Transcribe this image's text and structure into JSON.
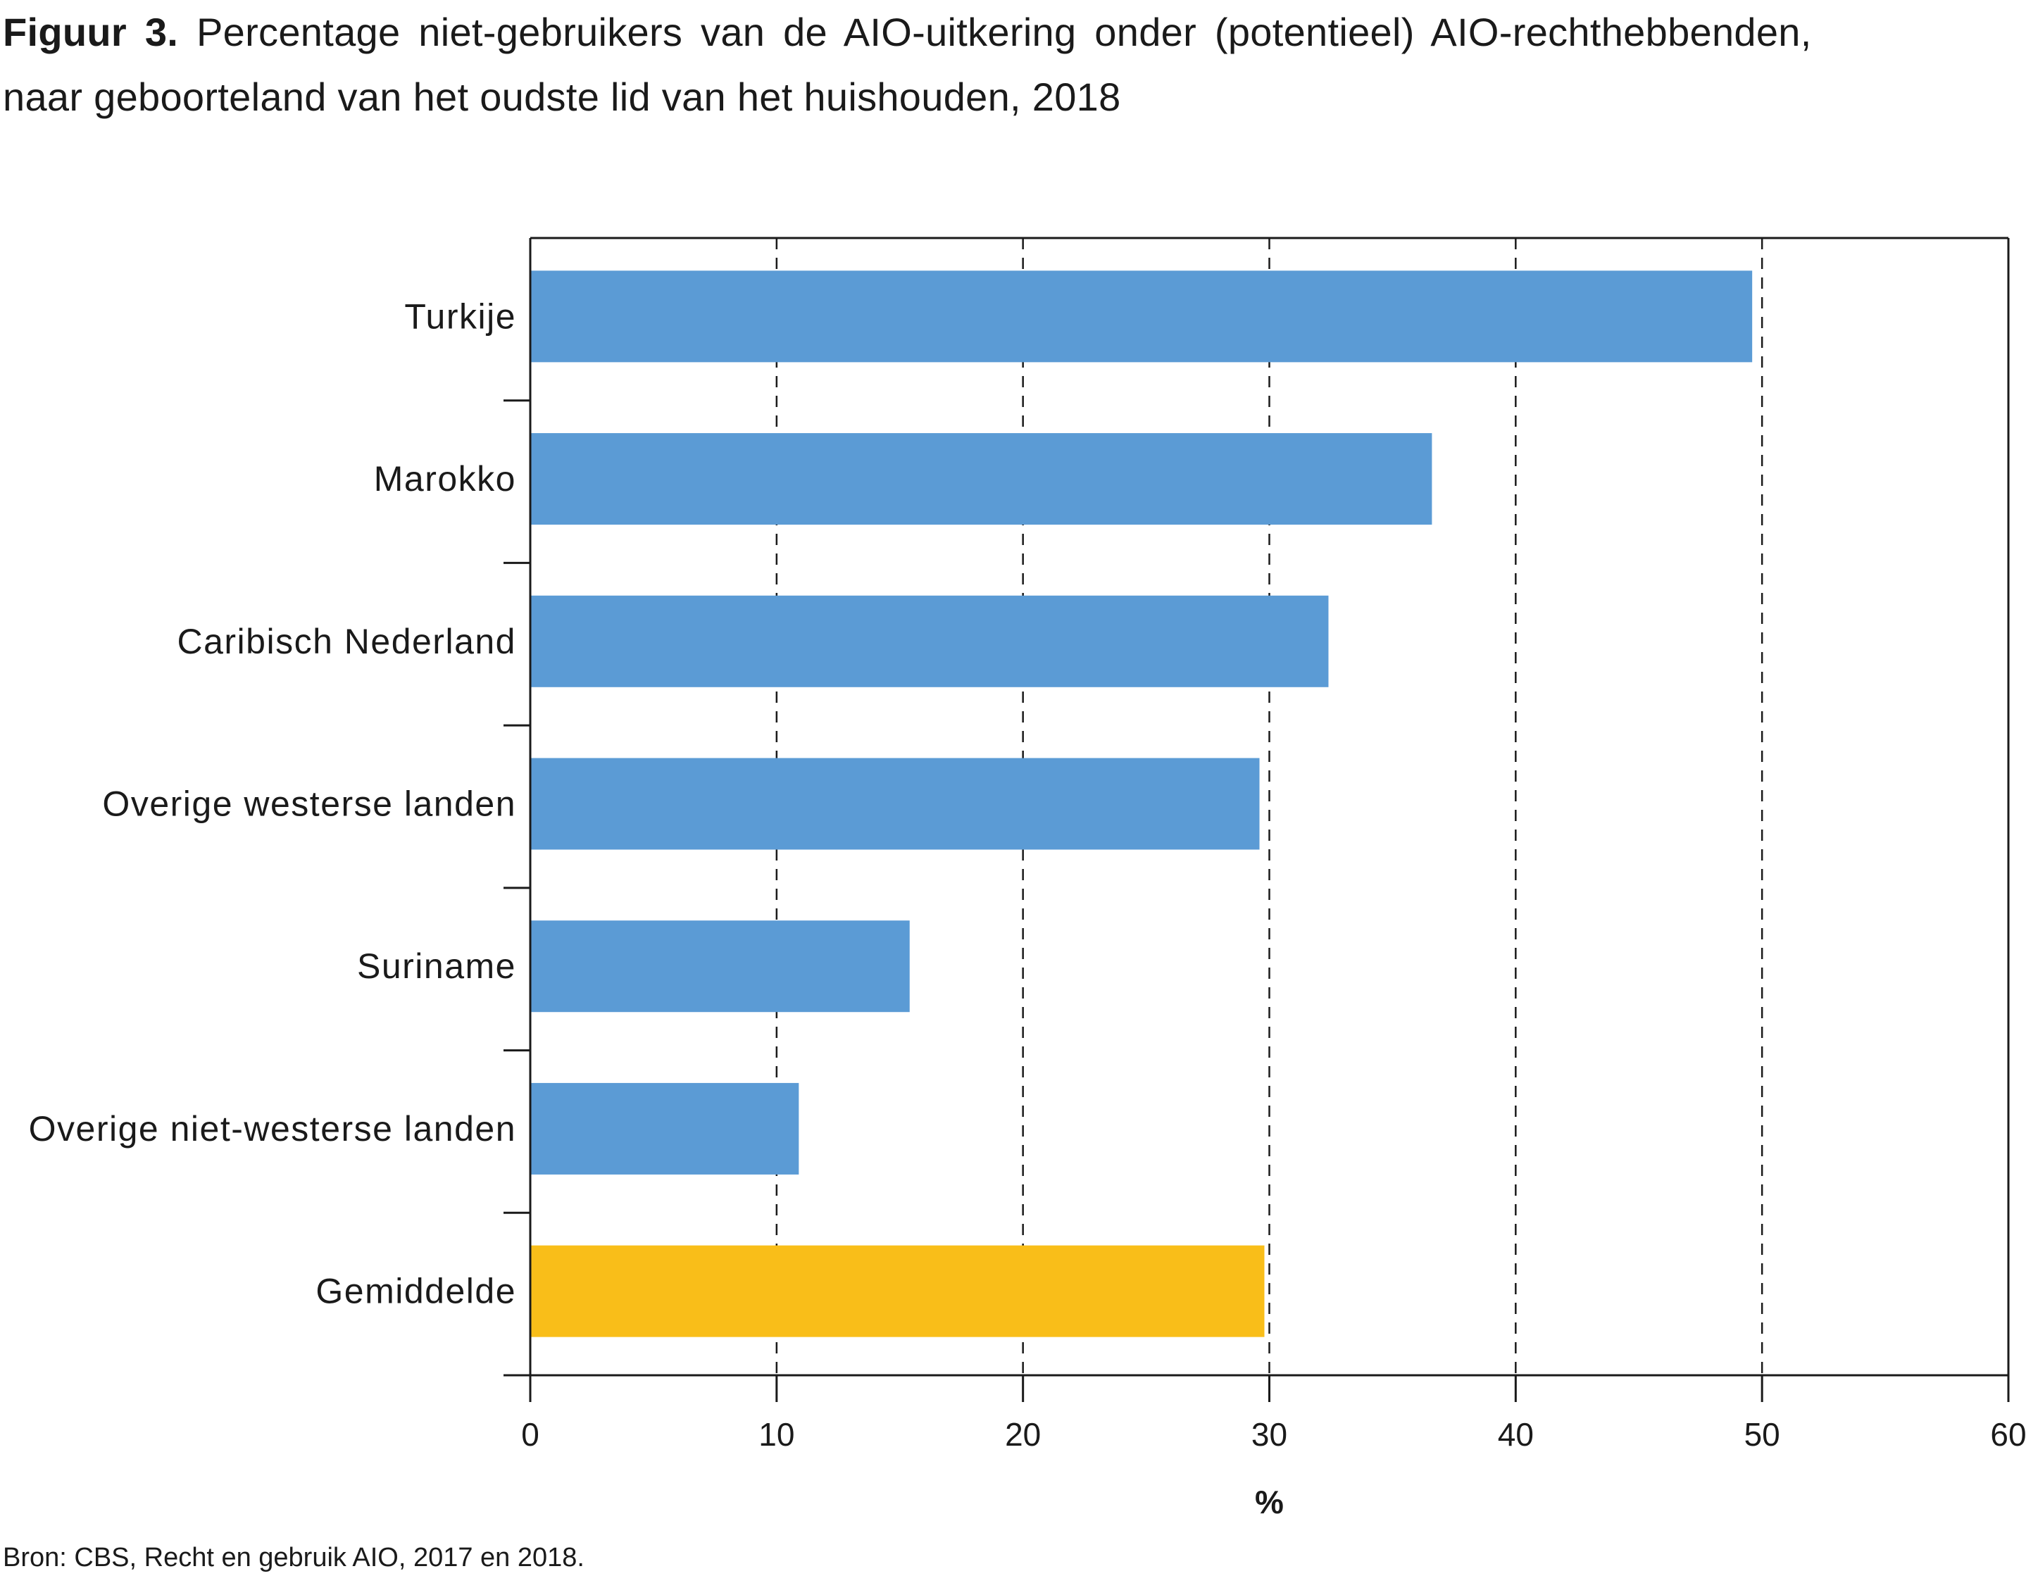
{
  "title": {
    "figure_label": "Figuur 3.",
    "line1": "Percentage niet-gebruikers van de AIO-uitkering onder (potentieel) AIO-rechthebbenden,",
    "line2": "naar  geboorteland van het oudste lid van het huishouden, 2018"
  },
  "source": "Bron: CBS, Recht en gebruik AIO, 2017 en 2018.",
  "colors": {
    "bar": "#5B9BD5",
    "highlight": "#F9BE19",
    "axis": "#1a1a1a",
    "grid": "#1a1a1a"
  },
  "chart_data": {
    "type": "bar",
    "orientation": "horizontal",
    "categories": [
      "Turkije",
      "Marokko",
      "Caribisch Nederland",
      "Overige westerse landen",
      "Suriname",
      "Overige niet-westerse landen",
      "Gemiddelde"
    ],
    "values": [
      49.6,
      36.6,
      32.4,
      29.6,
      15.4,
      10.9,
      29.8
    ],
    "highlight_category": "Gemiddelde",
    "xlim": [
      0,
      60
    ],
    "xticks": [
      0,
      10,
      20,
      30,
      40,
      50,
      60
    ],
    "xlabel": "%",
    "ylabel": "",
    "gridlines": "vertical dashed",
    "legend": "none"
  }
}
